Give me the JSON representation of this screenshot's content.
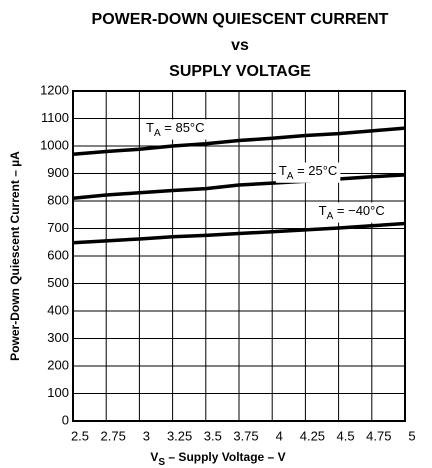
{
  "chart_data": {
    "type": "line",
    "title": [
      "POWER-DOWN QUIESCENT CURRENT",
      "vs",
      "SUPPLY VOLTAGE"
    ],
    "x_label": {
      "main": "V",
      "sub": "S",
      "rest": " – Supply Voltage – V"
    },
    "y_label": "Power-Down Quiescent Current – µA",
    "x": [
      2.5,
      2.75,
      3,
      3.25,
      3.5,
      3.75,
      4,
      4.25,
      4.5,
      4.75,
      5
    ],
    "series": [
      {
        "name": {
          "main": "T",
          "sub": "A",
          "rest": " = 85°C"
        },
        "color": "#000000",
        "values": [
          970,
          980,
          988,
          1000,
          1008,
          1020,
          1028,
          1038,
          1045,
          1055,
          1065
        ]
      },
      {
        "name": {
          "main": "T",
          "sub": "A",
          "rest": " = 25°C"
        },
        "color": "#000000",
        "values": [
          810,
          822,
          830,
          838,
          845,
          858,
          865,
          872,
          880,
          888,
          895
        ]
      },
      {
        "name": {
          "main": "T",
          "sub": "A",
          "rest": " = −40°C"
        },
        "color": "#000000",
        "values": [
          648,
          655,
          662,
          670,
          675,
          682,
          688,
          695,
          702,
          710,
          718
        ]
      }
    ],
    "xlim": [
      2.5,
      5
    ],
    "xticks": [
      2.5,
      2.75,
      3,
      3.25,
      3.5,
      3.75,
      4,
      4.25,
      4.5,
      4.75,
      5
    ],
    "ylim": [
      0,
      1200
    ],
    "yticks": [
      0,
      100,
      200,
      300,
      400,
      500,
      600,
      700,
      800,
      900,
      1000,
      1100,
      1200
    ],
    "grid": true
  }
}
